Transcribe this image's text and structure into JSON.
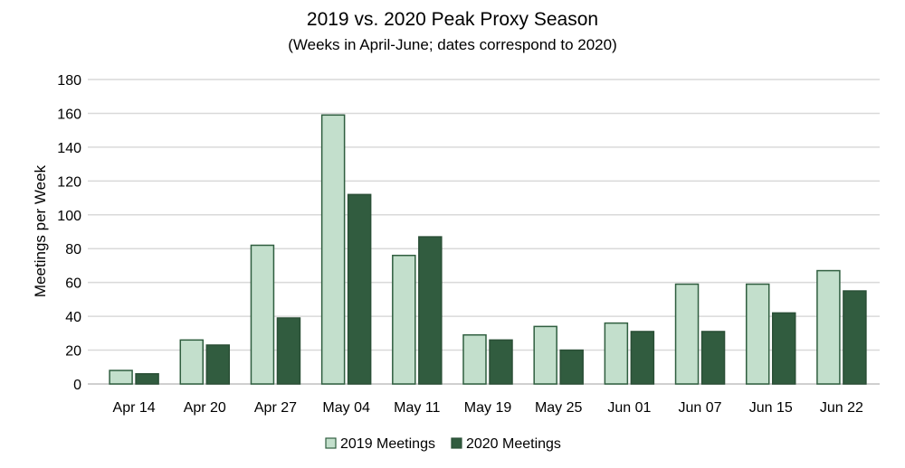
{
  "chart_data": {
    "type": "bar",
    "title": "2019 vs. 2020 Peak Proxy Season",
    "subtitle": "(Weeks in April-June; dates correspond to 2020)",
    "xlabel": "",
    "ylabel": "Meetings per Week",
    "ylim": [
      0,
      180
    ],
    "yticks": [
      0,
      20,
      40,
      60,
      80,
      100,
      120,
      140,
      160,
      180
    ],
    "grid": true,
    "legend_position": "bottom",
    "categories": [
      "Apr 14",
      "Apr 20",
      "Apr 27",
      "May 04",
      "May 11",
      "May 19",
      "May 25",
      "Jun 01",
      "Jun 07",
      "Jun 15",
      "Jun 22"
    ],
    "series": [
      {
        "name": "2019 Meetings",
        "color": "#c3dfcc",
        "stroke": "#2f5e3f",
        "values": [
          8,
          26,
          82,
          159,
          76,
          29,
          34,
          36,
          59,
          59,
          67
        ]
      },
      {
        "name": "2020 Meetings",
        "color": "#315c3f",
        "stroke": "#2a4f36",
        "values": [
          6,
          23,
          39,
          112,
          87,
          26,
          20,
          31,
          31,
          42,
          55
        ]
      }
    ]
  }
}
